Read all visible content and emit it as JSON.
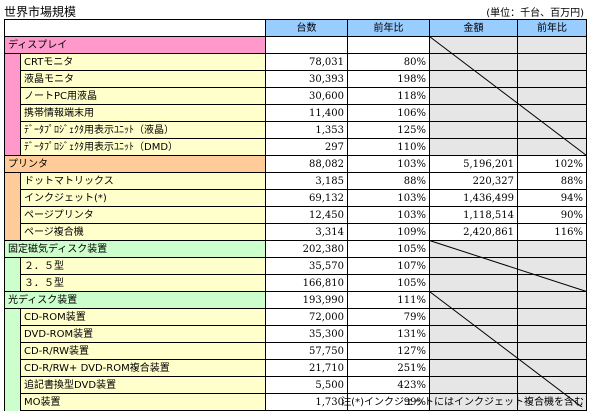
{
  "title": "世界市場規模",
  "unit_note": "(単位：千台、百万円)",
  "footnote": "注(*)インクジェットにはインクジェット複合機を含む",
  "headers": {
    "units": "台数",
    "units_yoy": "前年比",
    "amount": "金額",
    "amount_yoy": "前年比"
  },
  "groups": [
    {
      "name": "ディスプレイ",
      "color": "#ff99cc",
      "total": {
        "units": "",
        "units_yoy": "",
        "amount": "",
        "amount_yoy": ""
      },
      "items": [
        {
          "name": "CRTモニタ",
          "units": "78,031",
          "units_yoy": "80%",
          "amount": "",
          "amount_yoy": ""
        },
        {
          "name": "液晶モニタ",
          "units": "30,393",
          "units_yoy": "198%",
          "amount": "",
          "amount_yoy": ""
        },
        {
          "name": "ノートPC用液晶",
          "units": "30,600",
          "units_yoy": "118%",
          "amount": "",
          "amount_yoy": ""
        },
        {
          "name": "携帯情報端末用",
          "units": "11,400",
          "units_yoy": "106%",
          "amount": "",
          "amount_yoy": ""
        },
        {
          "name": "ﾃﾞｰﾀﾌﾟﾛｼﾞｪｸﾀ用表示ﾕﾆｯﾄ（液晶）",
          "units": "1,353",
          "units_yoy": "125%",
          "amount": "",
          "amount_yoy": ""
        },
        {
          "name": "ﾃﾞｰﾀﾌﾟﾛｼﾞｪｸﾀ用表示ﾕﾆｯﾄ（DMD）",
          "units": "297",
          "units_yoy": "110%",
          "amount": "",
          "amount_yoy": ""
        }
      ]
    },
    {
      "name": "プリンタ",
      "color": "#ffcc99",
      "total": {
        "units": "88,082",
        "units_yoy": "103%",
        "amount": "5,196,201",
        "amount_yoy": "102%"
      },
      "items": [
        {
          "name": "ドットマトリックス",
          "units": "3,185",
          "units_yoy": "88%",
          "amount": "220,327",
          "amount_yoy": "88%"
        },
        {
          "name": "インクジェット(*)",
          "units": "69,132",
          "units_yoy": "103%",
          "amount": "1,436,499",
          "amount_yoy": "94%"
        },
        {
          "name": "ページプリンタ",
          "units": "12,450",
          "units_yoy": "103%",
          "amount": "1,118,514",
          "amount_yoy": "90%"
        },
        {
          "name": "ページ複合機",
          "units": "3,314",
          "units_yoy": "109%",
          "amount": "2,420,861",
          "amount_yoy": "116%"
        }
      ]
    },
    {
      "name": "固定磁気ディスク装置",
      "color": "#ccffcc",
      "total": {
        "units": "202,380",
        "units_yoy": "105%",
        "amount": "",
        "amount_yoy": ""
      },
      "items": [
        {
          "name": "２．５型",
          "units": "35,570",
          "units_yoy": "107%",
          "amount": "",
          "amount_yoy": ""
        },
        {
          "name": "３．５型",
          "units": "166,810",
          "units_yoy": "105%",
          "amount": "",
          "amount_yoy": ""
        }
      ]
    },
    {
      "name": "光ディスク装置",
      "color": "#ccffcc",
      "total": {
        "units": "193,990",
        "units_yoy": "111%",
        "amount": "",
        "amount_yoy": ""
      },
      "items": [
        {
          "name": "CD-ROM装置",
          "units": "72,000",
          "units_yoy": "79%",
          "amount": "",
          "amount_yoy": ""
        },
        {
          "name": "DVD-ROM装置",
          "units": "35,300",
          "units_yoy": "131%",
          "amount": "",
          "amount_yoy": ""
        },
        {
          "name": "CD-R/RW装置",
          "units": "57,750",
          "units_yoy": "127%",
          "amount": "",
          "amount_yoy": ""
        },
        {
          "name": "CD-R/RW+ DVD-ROM複合装置",
          "units": "21,710",
          "units_yoy": "251%",
          "amount": "",
          "amount_yoy": ""
        },
        {
          "name": "追記書換型DVD装置",
          "units": "5,500",
          "units_yoy": "423%",
          "amount": "",
          "amount_yoy": ""
        },
        {
          "name": "MO装置",
          "units": "1,730",
          "units_yoy": "99%",
          "amount": "",
          "amount_yoy": ""
        }
      ]
    }
  ]
}
